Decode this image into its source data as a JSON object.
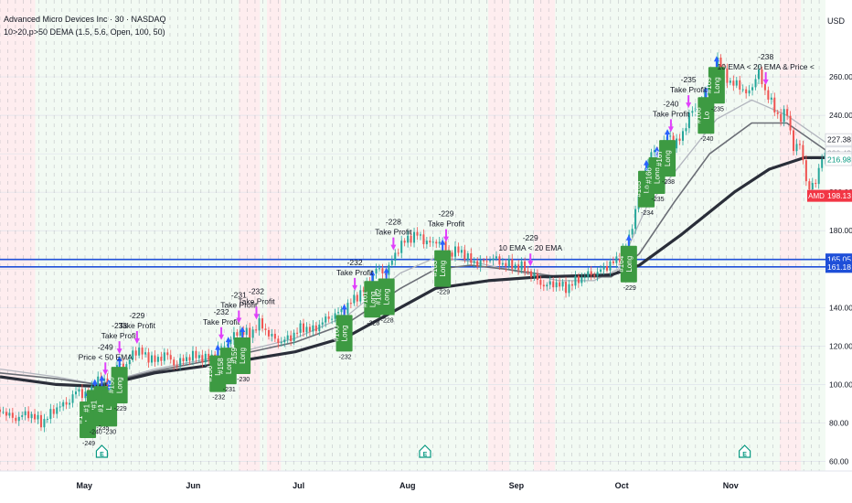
{
  "header": {
    "title": "Advanced Micro Devices Inc · 30 · NASDAQ",
    "indicator": "10>20,p>50 DEMA (1.5, 5.6, Open, 100, 50)"
  },
  "currency": "USD",
  "colors": {
    "price_up": "#26a69a",
    "price_down": "#ef5350",
    "ema_fast": "#b2b5be",
    "ema_mid": "#6b6e76",
    "ema_slow": "#2a2e39",
    "trade_box": "#3d9a42",
    "take_profit": "#e040fb",
    "entry_arrow": "#2962ff",
    "hline": "#1e4fd8",
    "price_tag": "#f23645",
    "bg_green": "#e8f5e9",
    "bg_red": "#ffebee"
  },
  "chart_data": {
    "type": "line",
    "symbol": "AMD",
    "ylim": [
      55,
      300
    ],
    "y_ticks": [
      60,
      80,
      100,
      120,
      140,
      160,
      180,
      200,
      220,
      240,
      260
    ],
    "x_ticks": [
      {
        "label": "May",
        "day": 0
      },
      {
        "label": "Jun",
        "day": 31
      },
      {
        "label": "Jul",
        "day": 61
      },
      {
        "label": "Aug",
        "day": 92
      },
      {
        "label": "Sep",
        "day": 123
      },
      {
        "label": "Oct",
        "day": 153
      },
      {
        "label": "Nov",
        "day": 184
      }
    ],
    "x_range_days": [
      -24,
      211
    ],
    "price_points": [
      [
        -24,
        87
      ],
      [
        -20,
        82
      ],
      [
        -16,
        85
      ],
      [
        -12,
        80
      ],
      [
        -8,
        88
      ],
      [
        -5,
        90
      ],
      [
        -2,
        97
      ],
      [
        1,
        94
      ],
      [
        4,
        103
      ],
      [
        7,
        100
      ],
      [
        10,
        112
      ],
      [
        12,
        109
      ],
      [
        14,
        118
      ],
      [
        17,
        116
      ],
      [
        20,
        112
      ],
      [
        23,
        116
      ],
      [
        26,
        110
      ],
      [
        29,
        114
      ],
      [
        32,
        115
      ],
      [
        35,
        113
      ],
      [
        38,
        118
      ],
      [
        41,
        122
      ],
      [
        44,
        128
      ],
      [
        47,
        126
      ],
      [
        50,
        132
      ],
      [
        53,
        125
      ],
      [
        56,
        122
      ],
      [
        59,
        125
      ],
      [
        62,
        130
      ],
      [
        65,
        128
      ],
      [
        68,
        133
      ],
      [
        71,
        136
      ],
      [
        74,
        139
      ],
      [
        77,
        145
      ],
      [
        80,
        150
      ],
      [
        83,
        160
      ],
      [
        86,
        158
      ],
      [
        89,
        170
      ],
      [
        92,
        176
      ],
      [
        95,
        178
      ],
      [
        98,
        173
      ],
      [
        101,
        175
      ],
      [
        104,
        168
      ],
      [
        107,
        170
      ],
      [
        110,
        164
      ],
      [
        113,
        163
      ],
      [
        116,
        166
      ],
      [
        119,
        163
      ],
      [
        122,
        162
      ],
      [
        125,
        161
      ],
      [
        128,
        156
      ],
      [
        131,
        151
      ],
      [
        134,
        153
      ],
      [
        137,
        150
      ],
      [
        140,
        154
      ],
      [
        143,
        157
      ],
      [
        146,
        158
      ],
      [
        149,
        162
      ],
      [
        152,
        165
      ],
      [
        155,
        175
      ],
      [
        158,
        200
      ],
      [
        160,
        214
      ],
      [
        162,
        222
      ],
      [
        164,
        220
      ],
      [
        166,
        230
      ],
      [
        168,
        225
      ],
      [
        170,
        228
      ],
      [
        172,
        240
      ],
      [
        175,
        245
      ],
      [
        178,
        256
      ],
      [
        180,
        268
      ],
      [
        182,
        264
      ],
      [
        184,
        255
      ],
      [
        186,
        258
      ],
      [
        188,
        250
      ],
      [
        190,
        255
      ],
      [
        192,
        262
      ],
      [
        194,
        252
      ],
      [
        196,
        245
      ],
      [
        198,
        238
      ],
      [
        200,
        242
      ],
      [
        202,
        222
      ],
      [
        204,
        225
      ],
      [
        206,
        200
      ],
      [
        208,
        205
      ],
      [
        210,
        218
      ]
    ],
    "series": [
      {
        "name": "",
        "points": [
          [
            -24,
            108
          ],
          [
            -8,
            104
          ],
          [
            4,
            100
          ],
          [
            20,
            108
          ],
          [
            40,
            115
          ],
          [
            60,
            124
          ],
          [
            75,
            136
          ],
          [
            90,
            158
          ],
          [
            100,
            166
          ],
          [
            110,
            164
          ],
          [
            120,
            160
          ],
          [
            135,
            154
          ],
          [
            145,
            154
          ],
          [
            152,
            160
          ],
          [
            160,
            192
          ],
          [
            170,
            215
          ],
          [
            180,
            238
          ],
          [
            190,
            248
          ],
          [
            200,
            240
          ],
          [
            211,
            226
          ]
        ]
      },
      {
        "name": "",
        "points": [
          [
            -24,
            106
          ],
          [
            -8,
            103
          ],
          [
            4,
            100
          ],
          [
            20,
            107
          ],
          [
            40,
            114
          ],
          [
            60,
            122
          ],
          [
            75,
            132
          ],
          [
            90,
            150
          ],
          [
            100,
            160
          ],
          [
            110,
            162
          ],
          [
            120,
            160
          ],
          [
            135,
            156
          ],
          [
            150,
            156
          ],
          [
            158,
            168
          ],
          [
            168,
            195
          ],
          [
            178,
            220
          ],
          [
            190,
            236
          ],
          [
            200,
            236
          ],
          [
            211,
            222
          ]
        ]
      },
      {
        "name": "",
        "points": [
          [
            -24,
            104
          ],
          [
            -8,
            100
          ],
          [
            4,
            99
          ],
          [
            20,
            106
          ],
          [
            40,
            111
          ],
          [
            60,
            117
          ],
          [
            75,
            125
          ],
          [
            90,
            140
          ],
          [
            100,
            150
          ],
          [
            115,
            154
          ],
          [
            130,
            156
          ],
          [
            150,
            157
          ],
          [
            158,
            162
          ],
          [
            170,
            178
          ],
          [
            185,
            200
          ],
          [
            195,
            212
          ],
          [
            205,
            218
          ],
          [
            211,
            218
          ]
        ]
      }
    ],
    "hlines": [
      {
        "value": 165.05,
        "label": "165.05",
        "color": "#2962ff"
      },
      {
        "value": 161.18,
        "label": "161.18",
        "color": "#2962ff"
      }
    ],
    "price_labels": [
      {
        "value": 227.38,
        "label": "227.38",
        "bg": "#ffffff",
        "fg": "#131722"
      },
      {
        "value": 220.43,
        "label": "220.43",
        "bg": "#ffffff",
        "fg": "#9598a1"
      },
      {
        "value": 217.96,
        "label": "217.96",
        "bg": "#ffffff",
        "fg": "#131722"
      },
      {
        "value": 216.98,
        "label": "216.98",
        "bg": "#ffffff",
        "fg": "#089981"
      },
      {
        "value": 198.13,
        "label": "198.13",
        "bg": "#f23645",
        "fg": "#ffffff"
      }
    ],
    "symbol_tag": {
      "value": 198.13,
      "label": "AMD"
    },
    "trades": [
      {
        "day": 1,
        "label": "L",
        "id": "#1",
        "pnl": "-249"
      },
      {
        "day": 3,
        "label": "L",
        "id": "#1",
        "pnl": "-240"
      },
      {
        "day": 5,
        "label": "L",
        "id": "#1",
        "pnl": "-235"
      },
      {
        "day": 7,
        "label": "L",
        "id": "#1",
        "pnl": "-230"
      },
      {
        "day": 10,
        "label": "Long",
        "id": "#156",
        "pnl": "-229"
      },
      {
        "day": 38,
        "label": "L",
        "id": "#150",
        "pnl": "-232"
      },
      {
        "day": 41,
        "label": "Long",
        "id": "#158",
        "pnl": "-231"
      },
      {
        "day": 45,
        "label": "Long",
        "id": "#159",
        "pnl": "-230"
      },
      {
        "day": 74,
        "label": "Long",
        "id": "#160",
        "pnl": "-232"
      },
      {
        "day": 82,
        "label": "Long",
        "id": "#161",
        "pnl": "-228"
      },
      {
        "day": 86,
        "label": "Long",
        "id": "#162",
        "pnl": "-228"
      },
      {
        "day": 102,
        "label": "Long",
        "id": "#163",
        "pnl": "-229"
      },
      {
        "day": 155,
        "label": "Long",
        "id": "#164",
        "pnl": "-229"
      },
      {
        "day": 160,
        "label": "Lo",
        "id": "#165",
        "pnl": "-234"
      },
      {
        "day": 163,
        "label": "Long",
        "id": "#166",
        "pnl": "-235"
      },
      {
        "day": 166,
        "label": "Long",
        "id": "#167",
        "pnl": "-238"
      },
      {
        "day": 177,
        "label": "Lo",
        "id": "#168",
        "pnl": "-240"
      },
      {
        "day": 180,
        "label": "Long",
        "id": "#169",
        "pnl": "-235"
      }
    ],
    "exits": [
      {
        "day": 6,
        "pnl": "-249",
        "text": "Price < 50 EMA"
      },
      {
        "day": 10,
        "pnl": "-233",
        "text": "Take Profit"
      },
      {
        "day": 15,
        "pnl": "-229",
        "text": "Take Profit"
      },
      {
        "day": 39,
        "pnl": "-232",
        "text": "Take Profit"
      },
      {
        "day": 44,
        "pnl": "-231",
        "text": "Take Profit"
      },
      {
        "day": 49,
        "pnl": "-232",
        "text": "Take Profit"
      },
      {
        "day": 77,
        "pnl": "-232",
        "text": "Take Profit"
      },
      {
        "day": 88,
        "pnl": "-228",
        "text": "Take Profit"
      },
      {
        "day": 103,
        "pnl": "-229",
        "text": "Take Profit"
      },
      {
        "day": 127,
        "pnl": "-229",
        "text": "10 EMA < 20 EMA"
      },
      {
        "day": 167,
        "pnl": "-240",
        "text": "Take Profit"
      },
      {
        "day": 172,
        "pnl": "-235",
        "text": "Take Profit"
      },
      {
        "day": 194,
        "pnl": "-238",
        "text": "10 EMA < 20 EMA & Price <"
      }
    ],
    "earnings_days": [
      5,
      97,
      188
    ]
  }
}
